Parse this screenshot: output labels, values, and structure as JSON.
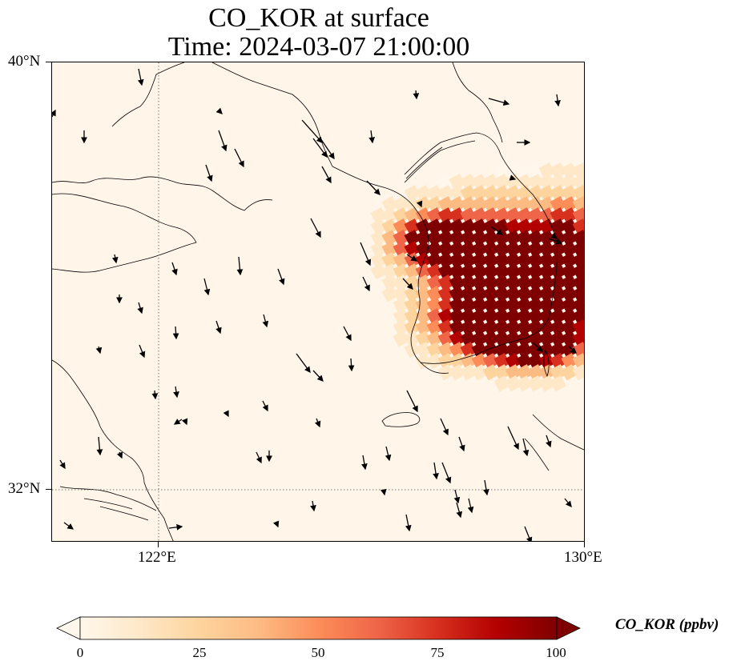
{
  "title": {
    "line1": "CO_KOR at surface",
    "line2": "Time: 2024-03-07 21:00:00"
  },
  "axes": {
    "lat_labels": [
      "40°N",
      "32°N"
    ],
    "lon_labels": [
      "122°E",
      "130°E"
    ]
  },
  "colorbar": {
    "label": "CO_KOR (ppbv)",
    "ticks": [
      "0",
      "25",
      "50",
      "75",
      "100"
    ],
    "colormap": "OrRd",
    "colors": [
      "#fff7ec",
      "#fee8c8",
      "#fdd49e",
      "#fdbb84",
      "#fc8d59",
      "#ef6548",
      "#d7301f",
      "#b30000",
      "#7f0000"
    ],
    "extend": "both"
  },
  "chart_data": {
    "type": "heatmap",
    "variable": "CO_KOR",
    "units": "ppbv",
    "level": "surface",
    "time": "2024-03-07 21:00:00",
    "lon_range": [
      120,
      130
    ],
    "lat_range": [
      31,
      40
    ],
    "gridlines": {
      "lon": [
        122
      ],
      "lat": [
        32
      ],
      "style": "dotted"
    },
    "value_range": [
      0,
      100
    ],
    "plume": {
      "description_values": "High CO_KOR (>100 ppbv) over central & southern Korean peninsula, 40-80 ppbv over western coastal Korea, near 0 elsewhere",
      "max_ppbv": 100
    },
    "wind_vectors": "black arrows predominantly pointing south-southeast"
  }
}
